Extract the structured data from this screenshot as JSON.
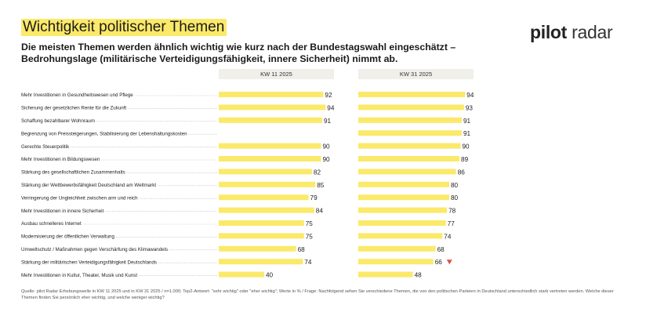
{
  "title": "Wichtigkeit politischer Themen",
  "logo": {
    "part1": "pilot",
    "part2": "radar"
  },
  "subtitle": "Die meisten Themen werden ähnlich wichtig wie kurz nach der Bundestagswahl eingeschätzt – Bedrohungslage (militärische Verteidigungsfähigkeit, innere Sicherheit) nimmt ab.",
  "footnote": "Quelle: pilot Radar Erhebungswelle in KW 11 2025 und in KW 31 2025 / n=1.000; Top2-Antwort: \"sehr wichtig\" oder \"eher wichtig\"; Werte in % / Frage: Nachfolgend sehen Sie verschiedene Themen, die von den politischen Parteien in Deutschland unterschiedlich stark vertreten werden. Welche dieser Themen finden Sie persönlich eher wichtig, und welche weniger wichtig?",
  "colors": {
    "bar": "#fbe96a",
    "highlight": "#fbe96a",
    "header_bg": "#f0efea",
    "decline_marker": "#d9534f",
    "leader": "#9a9a9a"
  },
  "chart_data": {
    "type": "bar",
    "orientation": "horizontal",
    "unit": "%",
    "xlim": [
      0,
      100
    ],
    "categories": [
      "Mehr Investitionen in Gesundheitswesen und Pflege",
      "Sicherung der gesetzlichen Rente für die Zukunft",
      "Schaffung bezahlbarer Wohnraum",
      "Begrenzung von Preissteigerungen, Stabilisierung der Lebenshaltungskosten",
      "Gerechte Steuerpolitik",
      "Mehr Investitionen in Bildungswesen",
      "Stärkung des gesellschaftlichen Zusammenhalts",
      "Stärkung der Wettbewerbsfähigkeit Deutschland am Weltmarkt",
      "Verringerung der Ungleichheit zwischen arm und reich",
      "Mehr Investitionen in innere Sicherheit",
      "Ausbau schnelleres Internet",
      "Modernisierung der öffentlichen Verwaltung",
      "Umweltschutz / Maßnahmen gegen Verschärfung des Klimawandels",
      "Stärkung der militärischen Verteidigungsfähigkeit Deutschlands",
      "Mehr Investitionen in Kultur, Theater, Musik und Kunst"
    ],
    "series": [
      {
        "name": "KW 11 2025",
        "values": [
          92,
          94,
          91,
          null,
          90,
          90,
          82,
          85,
          79,
          84,
          75,
          75,
          68,
          74,
          40
        ]
      },
      {
        "name": "KW 31 2025",
        "values": [
          94,
          93,
          91,
          91,
          90,
          89,
          86,
          80,
          80,
          78,
          77,
          74,
          68,
          66,
          48
        ]
      }
    ],
    "significant_decline": [
      {
        "series": "KW 31 2025",
        "category": "Stärkung der militärischen Verteidigungsfähigkeit Deutschlands",
        "marker": "down-triangle"
      }
    ]
  }
}
